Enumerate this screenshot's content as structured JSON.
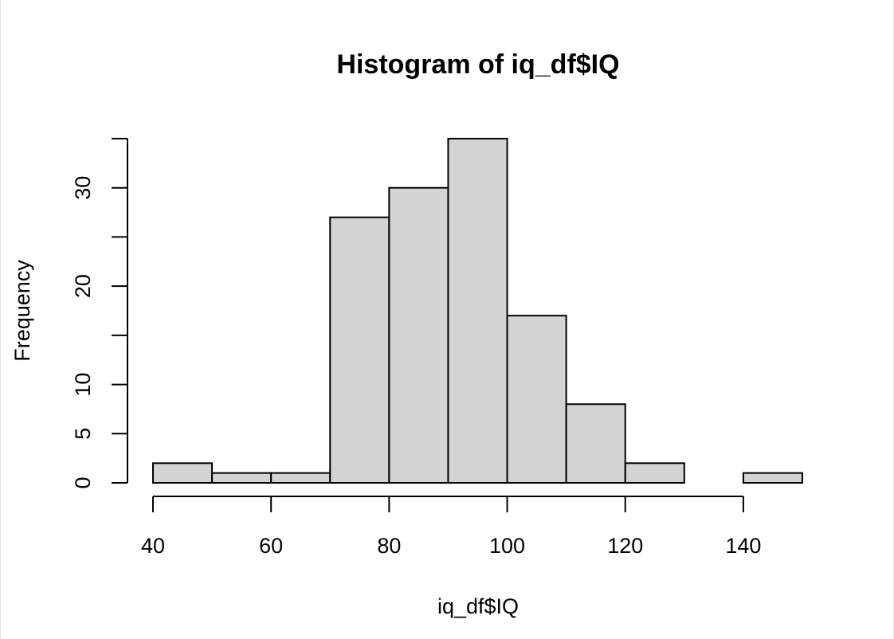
{
  "chart_data": {
    "type": "bar",
    "title": "Histogram of iq_df$IQ",
    "xlabel": "iq_df$IQ",
    "ylabel": "Frequency",
    "bins": [
      {
        "start": 40,
        "end": 50,
        "count": 2
      },
      {
        "start": 50,
        "end": 60,
        "count": 1
      },
      {
        "start": 60,
        "end": 70,
        "count": 1
      },
      {
        "start": 70,
        "end": 80,
        "count": 27
      },
      {
        "start": 80,
        "end": 90,
        "count": 30
      },
      {
        "start": 90,
        "end": 100,
        "count": 35
      },
      {
        "start": 100,
        "end": 110,
        "count": 17
      },
      {
        "start": 110,
        "end": 120,
        "count": 8
      },
      {
        "start": 120,
        "end": 130,
        "count": 2
      },
      {
        "start": 130,
        "end": 140,
        "count": 0
      },
      {
        "start": 140,
        "end": 150,
        "count": 1
      }
    ],
    "xlim": [
      40,
      150
    ],
    "ylim": [
      0,
      35
    ],
    "x_ticks": [
      40,
      60,
      80,
      100,
      120,
      140
    ],
    "y_ticks": [
      0,
      5,
      10,
      15,
      20,
      25,
      30,
      35
    ],
    "y_tick_labels": [
      "0",
      "5",
      "10",
      "",
      "20",
      "",
      "30",
      ""
    ],
    "bar_color": "#d3d3d3",
    "grid": false
  }
}
